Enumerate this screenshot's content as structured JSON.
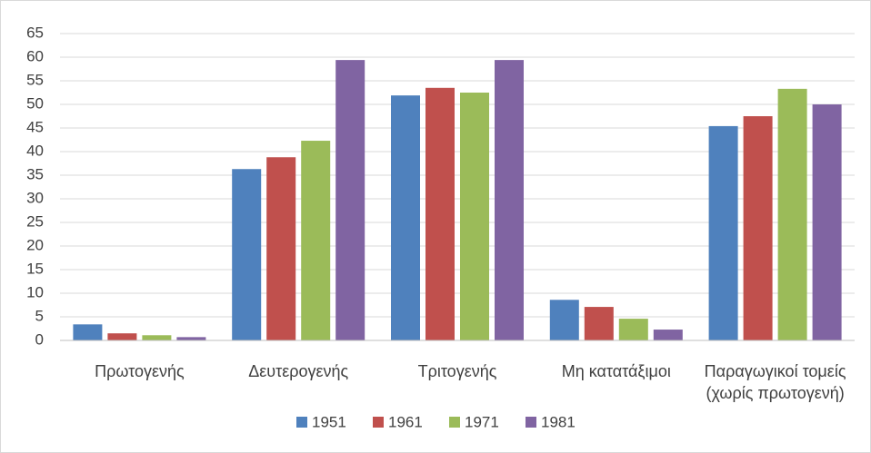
{
  "chart_data": {
    "type": "bar",
    "categories": [
      "Πρωτογενής",
      "Δευτερογενής",
      "Τριτογενής",
      "Μη κατατάξιμοι",
      "Παραγωγικοί τομείς (χωρίς πρωτογενή)"
    ],
    "series": [
      {
        "name": "1951",
        "color": "#4f81bd",
        "values": [
          3.4,
          36.3,
          51.9,
          8.6,
          45.4
        ]
      },
      {
        "name": "1961",
        "color": "#c0504d",
        "values": [
          1.5,
          38.8,
          53.5,
          7.1,
          47.5
        ]
      },
      {
        "name": "1971",
        "color": "#9bbb59",
        "values": [
          1.1,
          42.3,
          52.5,
          4.6,
          53.3
        ]
      },
      {
        "name": "1981",
        "color": "#8064a2",
        "values": [
          0.7,
          59.4,
          59.4,
          2.3,
          50.0
        ]
      }
    ],
    "ylim": [
      0,
      65
    ],
    "yticks": [
      0,
      5,
      10,
      15,
      20,
      25,
      30,
      35,
      40,
      45,
      50,
      55,
      60,
      65
    ],
    "grid": true,
    "legend": "bottom"
  }
}
